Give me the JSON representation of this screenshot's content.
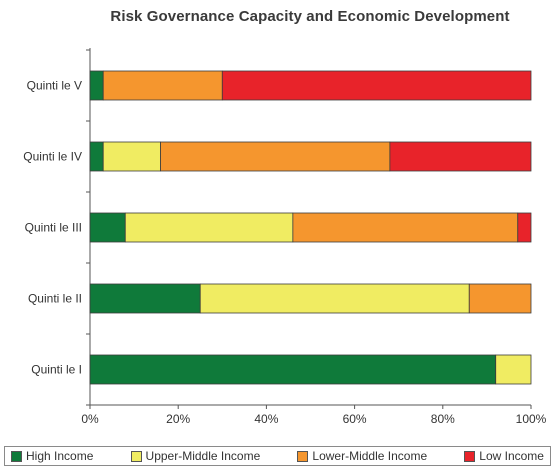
{
  "chart_data": {
    "type": "bar",
    "orientation": "horizontal",
    "stacked": true,
    "title": "Risk Governance Capacity and Economic Development",
    "categories": [
      "Quinti le V",
      "Quinti le IV",
      "Quinti le III",
      "Quinti le II",
      "Quinti le I"
    ],
    "series": [
      {
        "name": "High Income",
        "color": "#0f7a3a",
        "values": [
          3,
          3,
          8,
          25,
          92
        ]
      },
      {
        "name": "Upper-Middle Income",
        "color": "#f0ec62",
        "values": [
          0,
          13,
          38,
          61,
          8
        ]
      },
      {
        "name": "Lower-Middle Income",
        "color": "#f5962e",
        "values": [
          27,
          52,
          51,
          14,
          0
        ]
      },
      {
        "name": "Low Income",
        "color": "#e8232a",
        "values": [
          70,
          32,
          3,
          0,
          0
        ]
      }
    ],
    "x_ticks": [
      "0%",
      "20%",
      "40%",
      "60%",
      "80%",
      "100%"
    ],
    "xlim": [
      0,
      100
    ],
    "grid": false,
    "legend_position": "bottom"
  }
}
